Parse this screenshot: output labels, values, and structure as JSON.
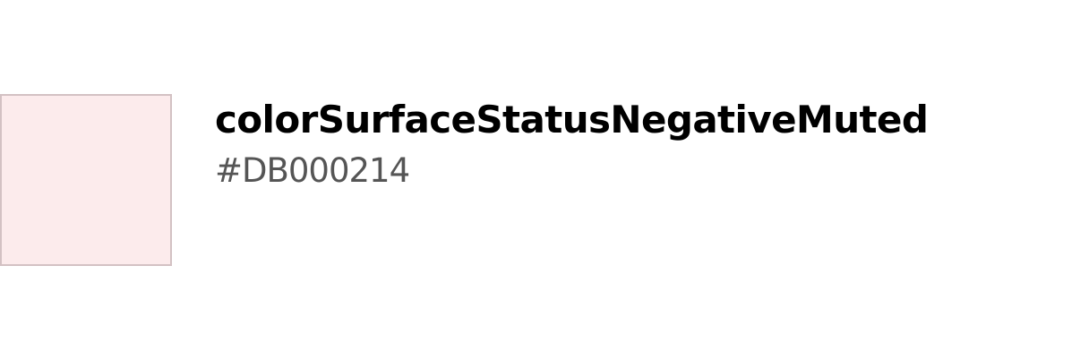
{
  "token": {
    "name": "colorSurfaceStatusNegativeMuted",
    "value": "#DB000214",
    "swatch_fill": "#fcebec",
    "swatch_border": "#d3c1c3"
  }
}
